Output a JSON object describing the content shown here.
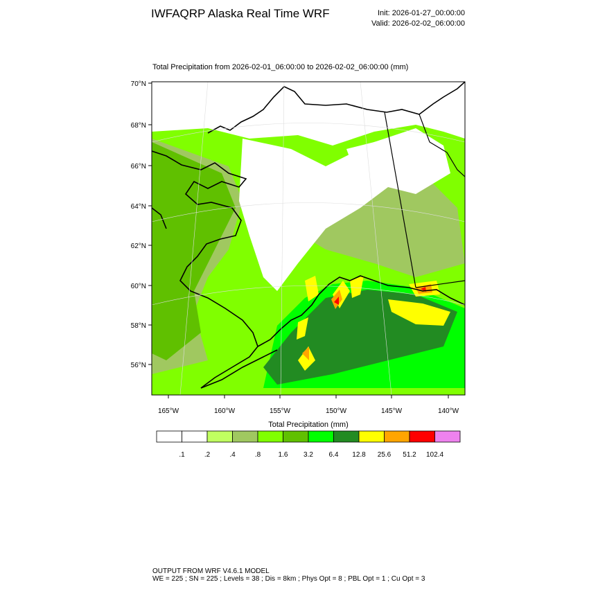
{
  "header": {
    "title": "IWFAQRP Alaska Real Time WRF",
    "init": "Init: 2026-01-27_00:00:00",
    "valid": "Valid: 2026-02-02_06:00:00"
  },
  "map": {
    "subtitle": "Total Precipitation from 2026-02-01_06:00:00 to 2026-02-02_06:00:00   (mm)",
    "lat_labels": [
      "70°N",
      "68°N",
      "66°N",
      "64°N",
      "62°N",
      "60°N",
      "58°N",
      "56°N"
    ],
    "lon_labels": [
      "165°W",
      "160°W",
      "155°W",
      "150°W",
      "145°W",
      "140°W"
    ]
  },
  "colorbar": {
    "title": "Total Precipitation  (mm)",
    "colors": [
      "#ffffff",
      "#ffffff",
      "#c0ff60",
      "#a0c860",
      "#80ff00",
      "#60c000",
      "#00ff00",
      "#228b22",
      "#ffff00",
      "#ffa500",
      "#ff0000",
      "#ee82ee"
    ],
    "labels": [
      ".1",
      ".2",
      ".4",
      ".8",
      "1.6",
      "3.2",
      "6.4",
      "12.8",
      "25.6",
      "51.2",
      "102.4"
    ]
  },
  "footer": {
    "line1": "OUTPUT FROM WRF V4.6.1 MODEL",
    "line2": "WE = 225 ; SN = 225 ; Levels = 38 ; Dis = 8km ; Phys Opt = 8 ; PBL Opt = 1 ; Cu Opt = 3"
  }
}
